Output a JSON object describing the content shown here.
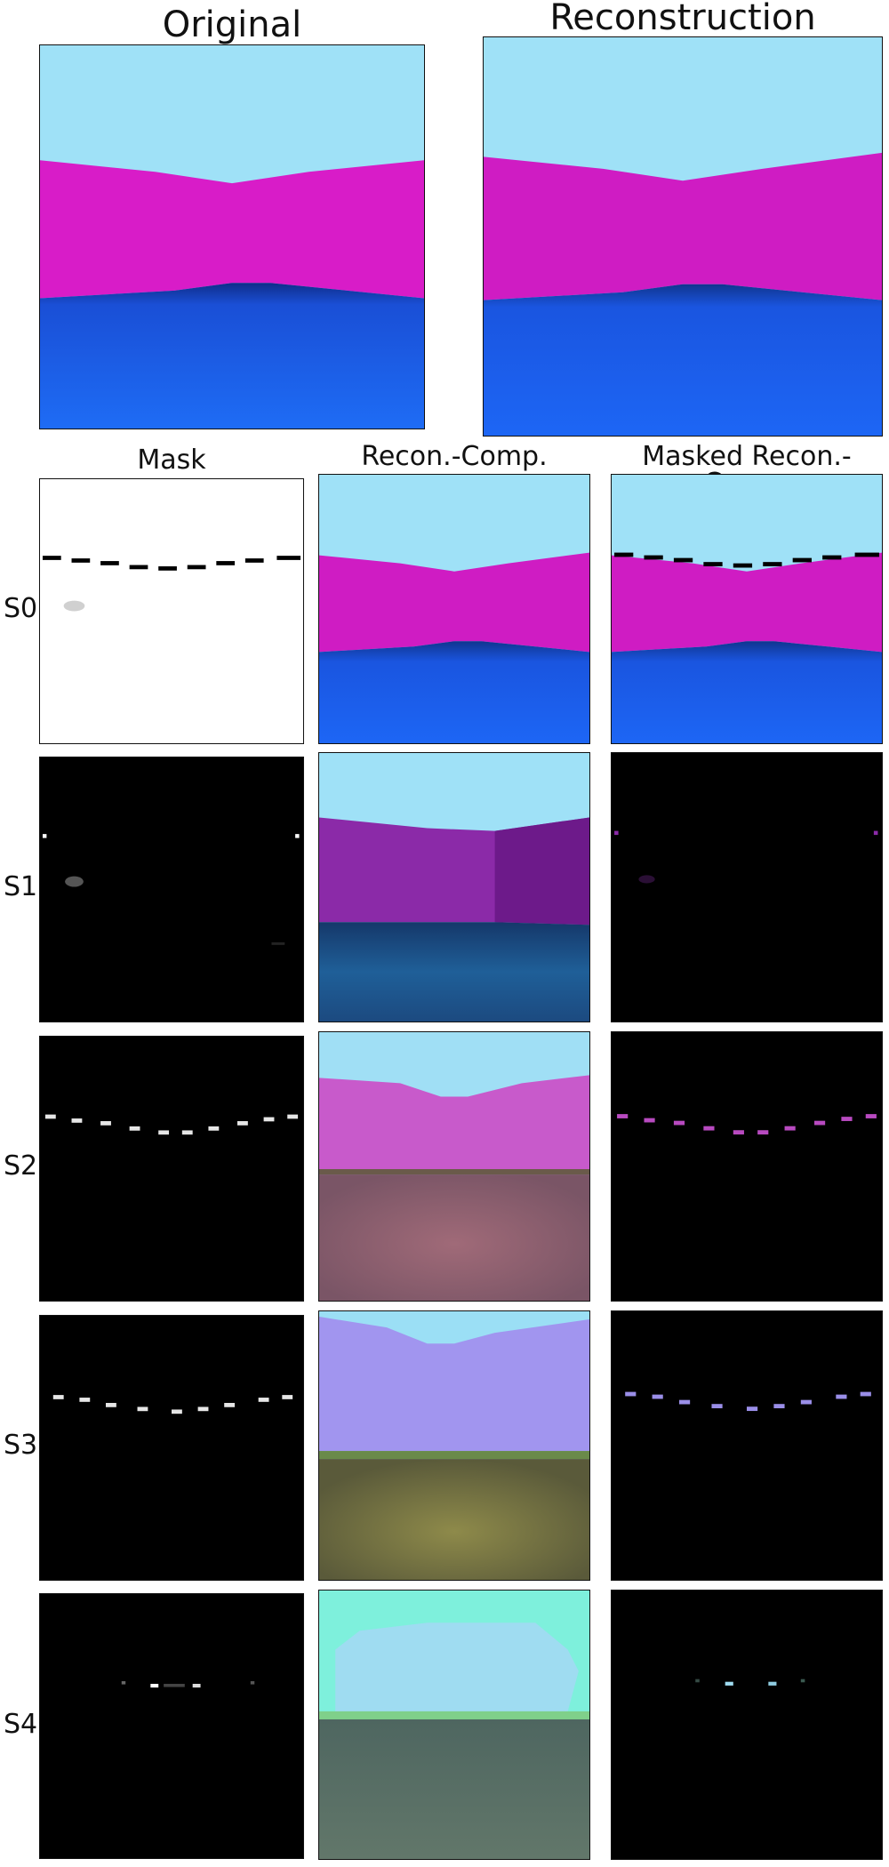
{
  "titles": {
    "original": "Original",
    "reconstruction": "Reconstruction"
  },
  "columns": {
    "mask": "Mask",
    "recon_comp": "Recon.-Comp.",
    "masked_recon_comp": "Masked Recon.-Comp."
  },
  "rows": [
    "S0",
    "S1",
    "S2",
    "S3",
    "S4"
  ]
}
